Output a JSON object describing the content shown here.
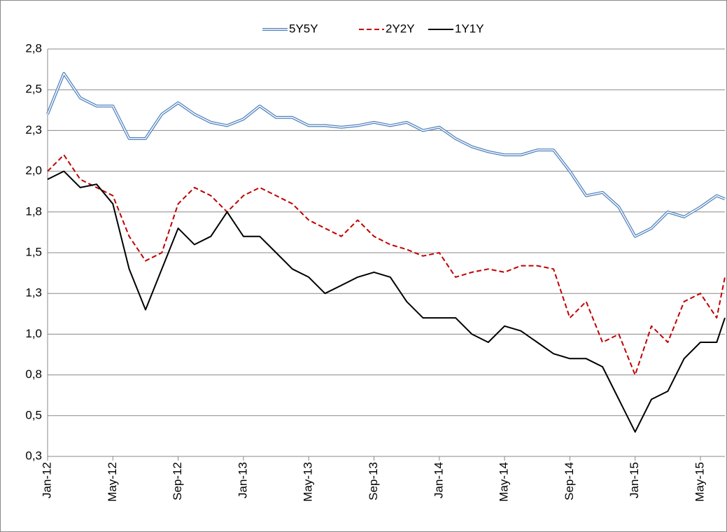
{
  "chart_data": {
    "type": "line",
    "x": [
      0,
      1,
      2,
      3,
      4,
      5,
      6,
      7,
      8,
      9,
      10,
      11,
      12,
      13,
      14,
      15,
      16,
      17,
      18,
      19,
      20,
      21,
      22,
      23,
      24,
      25,
      26,
      27,
      28,
      29,
      30,
      31,
      32,
      33,
      34,
      35,
      36,
      37,
      38,
      39,
      40,
      41,
      41.5
    ],
    "xlim": [
      0,
      41.5
    ],
    "xticks": [
      {
        "value": 0,
        "label": "Jan-12"
      },
      {
        "value": 4,
        "label": "May-12"
      },
      {
        "value": 8,
        "label": "Sep-12"
      },
      {
        "value": 12,
        "label": "Jan-13"
      },
      {
        "value": 16,
        "label": "May-13"
      },
      {
        "value": 20,
        "label": "Sep-13"
      },
      {
        "value": 24,
        "label": "Jan-14"
      },
      {
        "value": 28,
        "label": "May-14"
      },
      {
        "value": 32,
        "label": "Sep-14"
      },
      {
        "value": 36,
        "label": "Jan-15"
      },
      {
        "value": 40,
        "label": "May-15"
      }
    ],
    "ylim": [
      0.25,
      2.75
    ],
    "yticks": [
      {
        "value": 0.25,
        "label": "0,3"
      },
      {
        "value": 0.5,
        "label": "0,5"
      },
      {
        "value": 0.75,
        "label": "0,8"
      },
      {
        "value": 1.0,
        "label": "1,0"
      },
      {
        "value": 1.25,
        "label": "1,3"
      },
      {
        "value": 1.5,
        "label": "1,5"
      },
      {
        "value": 1.75,
        "label": "1,8"
      },
      {
        "value": 2.0,
        "label": "2,0"
      },
      {
        "value": 2.25,
        "label": "2,3"
      },
      {
        "value": 2.5,
        "label": "2,5"
      },
      {
        "value": 2.75,
        "label": "2,8"
      }
    ],
    "grid": true,
    "legend": "top",
    "series": [
      {
        "name": "5Y5Y",
        "color": "#4f81bd",
        "style": "double",
        "values": [
          2.35,
          2.6,
          2.45,
          2.4,
          2.4,
          2.2,
          2.2,
          2.35,
          2.42,
          2.35,
          2.3,
          2.28,
          2.32,
          2.4,
          2.33,
          2.33,
          2.28,
          2.28,
          2.27,
          2.28,
          2.3,
          2.28,
          2.3,
          2.25,
          2.27,
          2.2,
          2.15,
          2.12,
          2.1,
          2.1,
          2.13,
          2.13,
          2.0,
          1.85,
          1.87,
          1.78,
          1.6,
          1.65,
          1.75,
          1.72,
          1.78,
          1.85,
          1.83
        ]
      },
      {
        "name": "2Y2Y",
        "color": "#c00000",
        "style": "dashed",
        "values": [
          2.0,
          2.1,
          1.95,
          1.9,
          1.85,
          1.6,
          1.45,
          1.5,
          1.8,
          1.9,
          1.85,
          1.75,
          1.85,
          1.9,
          1.85,
          1.8,
          1.7,
          1.65,
          1.6,
          1.7,
          1.6,
          1.55,
          1.52,
          1.48,
          1.5,
          1.35,
          1.38,
          1.4,
          1.38,
          1.42,
          1.42,
          1.4,
          1.1,
          1.2,
          0.95,
          1.0,
          0.75,
          1.05,
          0.95,
          1.2,
          1.25,
          1.1,
          1.35
        ]
      },
      {
        "name": "1Y1Y",
        "color": "#000000",
        "style": "solid",
        "values": [
          1.95,
          2.0,
          1.9,
          1.92,
          1.8,
          1.4,
          1.15,
          1.4,
          1.65,
          1.55,
          1.6,
          1.75,
          1.6,
          1.6,
          1.5,
          1.4,
          1.35,
          1.25,
          1.3,
          1.35,
          1.38,
          1.35,
          1.2,
          1.1,
          1.1,
          1.1,
          1.0,
          0.95,
          1.05,
          1.02,
          0.95,
          0.88,
          0.85,
          0.85,
          0.8,
          0.6,
          0.4,
          0.6,
          0.65,
          0.85,
          0.95,
          0.95,
          1.1
        ]
      }
    ]
  }
}
